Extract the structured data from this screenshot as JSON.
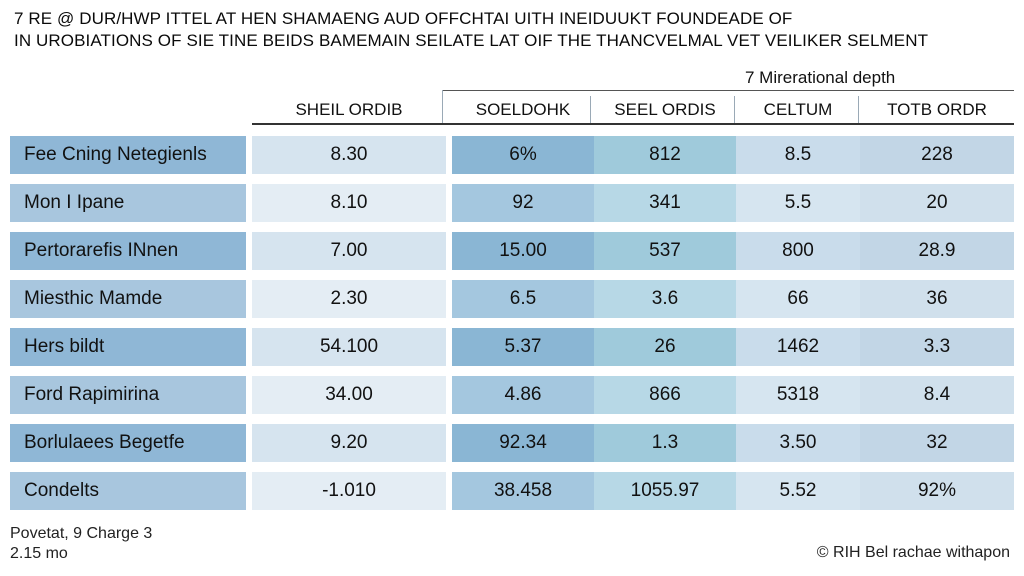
{
  "title": {
    "line1": "7 RE @ DUR/HWP ITTEL AT HEN SHAMAENG AUD OFFCHTAI UITH INEIDUUKT FOUNDEADE OF",
    "line2": "IN UROBIATIONS OF SIE TINE BEIDS BAMEMAIN SEILATE LAT OIF THE THANCVELMAL VET VEILIKER SELMENT"
  },
  "group_header": "7 Mirerational depth",
  "columns": [
    "",
    "SHEIL ORDIB",
    "SOELDOHK",
    "SEEL ORDIS",
    "CELTUM",
    "TOTB ORDR"
  ],
  "rows": [
    [
      "Fee Cning Netegienls",
      "8.30",
      "6%",
      "812",
      "8.5",
      "228"
    ],
    [
      "Mon I Ipane",
      "8.10",
      "92",
      "341",
      "5.5",
      "20"
    ],
    [
      "Pertorarefis INnen",
      "7.00",
      "15.00",
      "537",
      "800",
      "28.9"
    ],
    [
      "Miesthic Mamde",
      "2.30",
      "6.5",
      "3.6",
      "66",
      "36"
    ],
    [
      "Hers bildt",
      "54.100",
      "5.37",
      "26",
      "1462",
      "3.3"
    ],
    [
      "Ford Rapimirina",
      "34.00",
      "4.86",
      "866",
      "5318",
      "8.4"
    ],
    [
      "Borlulaees Begetfe",
      "9.20",
      "92.34",
      "1.3",
      "3.50",
      "32"
    ],
    [
      "Condelts",
      "-1.010",
      "38.458",
      "1055.97",
      "5.52",
      "92%"
    ]
  ],
  "footer": {
    "left_line1": "Povetat, 9 Charge 3",
    "left_line2": "2.15 mo",
    "right": "© RIH Bel rachae withapon"
  }
}
